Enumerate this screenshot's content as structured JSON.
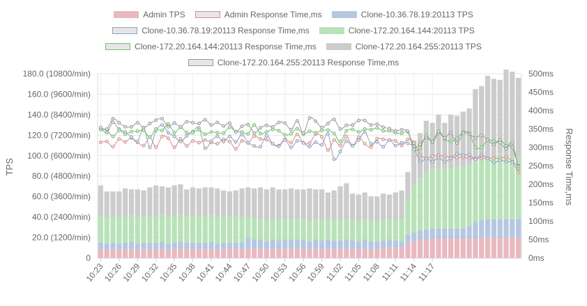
{
  "chart_data": {
    "type": "bar",
    "title": "",
    "legend_position": "top",
    "legend": [
      {
        "label": "Admin TPS",
        "fill": "#e8b9bf",
        "stroke": "#e8b9bf",
        "kind": "bar"
      },
      {
        "label": "Admin Response Time,ms",
        "fill": "#e6e6e6",
        "stroke": "#d98c8c",
        "kind": "line"
      },
      {
        "label": "Clone-10.36.78.19:20113 TPS",
        "fill": "#b6c7e2",
        "stroke": "#b6c7e2",
        "kind": "bar"
      },
      {
        "label": "Clone-10.36.78.19:20113 Response Time,ms",
        "fill": "#e6e6e6",
        "stroke": "#8da0c0",
        "kind": "line"
      },
      {
        "label": "Clone-172.20.164.144:20113 TPS",
        "fill": "#b9e2b8",
        "stroke": "#b9e2b8",
        "kind": "bar"
      },
      {
        "label": "Clone-172.20.164.144:20113 Response Time,ms",
        "fill": "#e6e6e6",
        "stroke": "#6cc06a",
        "kind": "line"
      },
      {
        "label": "Clone-172.20.164.255:20113 TPS",
        "fill": "#cccccc",
        "stroke": "#cccccc",
        "kind": "bar"
      },
      {
        "label": "Clone-172.20.164.255:20113 Response Time,ms",
        "fill": "#e6e6e6",
        "stroke": "#999999",
        "kind": "line"
      }
    ],
    "y_left": {
      "label": "TPS",
      "min": 0,
      "max": 180,
      "ticks": [
        "0",
        "20.0 (1200/min)",
        "40.0 (2400/min)",
        "60.0 (3600/min)",
        "80.0 (4800/min)",
        "100.0 (6000/min)",
        "120.0 (7200/min)",
        "140.0 (8400/min)",
        "160.0 (9600/min)",
        "180.0 (10800/min)"
      ]
    },
    "y_right": {
      "label": "Response Time,ms",
      "min": 0,
      "max": 500,
      "ticks": [
        "0ms",
        "50ms",
        "100ms",
        "150ms",
        "200ms",
        "250ms",
        "300ms",
        "350ms",
        "400ms",
        "450ms",
        "500ms"
      ]
    },
    "x_tick_labels": [
      "10:23",
      "10:26",
      "10:29",
      "10:32",
      "10:35",
      "10:38",
      "10:41",
      "10:44",
      "10:47",
      "10:50",
      "10:53",
      "10:56",
      "10:59",
      "11:02",
      "11:05",
      "11:08",
      "11:11",
      "11:14",
      "11:17"
    ],
    "grid": true,
    "stacked_bars": true,
    "bar_series": {
      "admin": [
        9,
        8,
        9,
        8,
        9,
        9,
        8,
        9,
        8,
        9,
        9,
        8,
        9,
        9,
        9,
        8,
        9,
        9,
        9,
        8,
        9,
        9,
        9,
        8,
        10,
        9,
        9,
        8,
        9,
        9,
        9,
        9,
        9,
        9,
        8,
        9,
        8,
        9,
        9,
        8,
        9,
        9,
        8,
        9,
        8,
        9,
        9,
        10,
        10,
        10,
        15,
        16,
        17,
        18,
        19,
        19,
        19,
        19,
        19,
        19,
        19,
        19,
        20,
        20,
        20,
        20,
        20,
        20,
        20
      ],
      "clone19": [
        6,
        6,
        6,
        6,
        6,
        7,
        6,
        6,
        7,
        6,
        7,
        6,
        6,
        7,
        6,
        7,
        6,
        6,
        7,
        6,
        6,
        6,
        6,
        7,
        10,
        9,
        9,
        8,
        9,
        8,
        9,
        9,
        9,
        9,
        8,
        9,
        9,
        9,
        8,
        9,
        9,
        8,
        8,
        9,
        8,
        7,
        8,
        8,
        7,
        6,
        8,
        9,
        10,
        10,
        10,
        10,
        10,
        10,
        10,
        10,
        12,
        16,
        17,
        18,
        18,
        18,
        18,
        18,
        18
      ],
      "clone144": [
        26,
        26,
        26,
        26,
        26,
        26,
        26,
        26,
        26,
        26,
        26,
        26,
        26,
        26,
        26,
        26,
        26,
        26,
        26,
        26,
        26,
        26,
        26,
        26,
        20,
        21,
        20,
        21,
        20,
        20,
        21,
        20,
        20,
        20,
        20,
        20,
        20,
        20,
        20,
        20,
        20,
        20,
        20,
        20,
        20,
        20,
        20,
        20,
        20,
        22,
        33,
        46,
        51,
        55,
        58,
        58,
        58,
        58,
        60,
        60,
        60,
        60,
        60,
        60,
        60,
        64,
        60,
        60,
        60
      ],
      "clone255": [
        30,
        25,
        24,
        25,
        27,
        25,
        27,
        25,
        28,
        30,
        28,
        29,
        30,
        30,
        26,
        28,
        27,
        28,
        27,
        28,
        25,
        24,
        25,
        27,
        29,
        29,
        31,
        30,
        31,
        30,
        28,
        30,
        29,
        29,
        32,
        29,
        30,
        26,
        29,
        33,
        35,
        26,
        26,
        26,
        24,
        24,
        26,
        24,
        27,
        28,
        28,
        44,
        44,
        51,
        45,
        53,
        45,
        53,
        50,
        54,
        55,
        70,
        71,
        80,
        77,
        72,
        86,
        84,
        78
      ]
    },
    "line_series": {
      "admin_rt": [
        314,
        316,
        302,
        323,
        315,
        326,
        314,
        305,
        328,
        301,
        330,
        325,
        300,
        323,
        304,
        318,
        313,
        320,
        314,
        310,
        322,
        316,
        296,
        318,
        312,
        331,
        323,
        321,
        310,
        305,
        323,
        313,
        335,
        313,
        312,
        336,
        329,
        293,
        320,
        305,
        330,
        305,
        328,
        310,
        301,
        324,
        322,
        320,
        318,
        305,
        322,
        312,
        280,
        271,
        276,
        279,
        276,
        274,
        272,
        273,
        270,
        270,
        270,
        271,
        271,
        271,
        273,
        262,
        232
      ],
      "clone19_rt": [
        352,
        340,
        368,
        350,
        342,
        328,
        316,
        354,
        300,
        345,
        361,
        340,
        330,
        316,
        331,
        343,
        353,
        298,
        317,
        330,
        316,
        330,
        315,
        335,
        313,
        304,
        302,
        332,
        310,
        303,
        320,
        300,
        318,
        312,
        302,
        314,
        307,
        337,
        268,
        289,
        317,
        304,
        320,
        342,
        310,
        315,
        302,
        320,
        305,
        313,
        311,
        300,
        262,
        270,
        262,
        272,
        262,
        270,
        283,
        279,
        280,
        268,
        280,
        270,
        259,
        265,
        262,
        260,
        250
      ],
      "clone144_rt": [
        348,
        347,
        330,
        346,
        336,
        343,
        344,
        346,
        328,
        350,
        346,
        364,
        340,
        355,
        340,
        340,
        348,
        336,
        342,
        340,
        339,
        355,
        343,
        342,
        337,
        361,
        338,
        342,
        349,
        345,
        334,
        337,
        351,
        336,
        344,
        340,
        346,
        347,
        338,
        316,
        345,
        349,
        342,
        350,
        348,
        353,
        345,
        345,
        340,
        338,
        342,
        295,
        298,
        333,
        313,
        340,
        323,
        316,
        324,
        342,
        338,
        300,
        300,
        320,
        317,
        313,
        296,
        313,
        242
      ],
      "clone255_rt": [
        354,
        350,
        378,
        367,
        356,
        356,
        367,
        353,
        365,
        374,
        378,
        356,
        366,
        356,
        370,
        367,
        365,
        375,
        361,
        368,
        358,
        366,
        342,
        357,
        362,
        339,
        353,
        360,
        356,
        368,
        366,
        348,
        372,
        339,
        380,
        371,
        354,
        365,
        376,
        350,
        360,
        361,
        373,
        373,
        361,
        363,
        355,
        351,
        345,
        348,
        344,
        303,
        309,
        327,
        316,
        344,
        326,
        339,
        311,
        339,
        336,
        326,
        333,
        320,
        308,
        320,
        305,
        300,
        248
      ]
    }
  }
}
